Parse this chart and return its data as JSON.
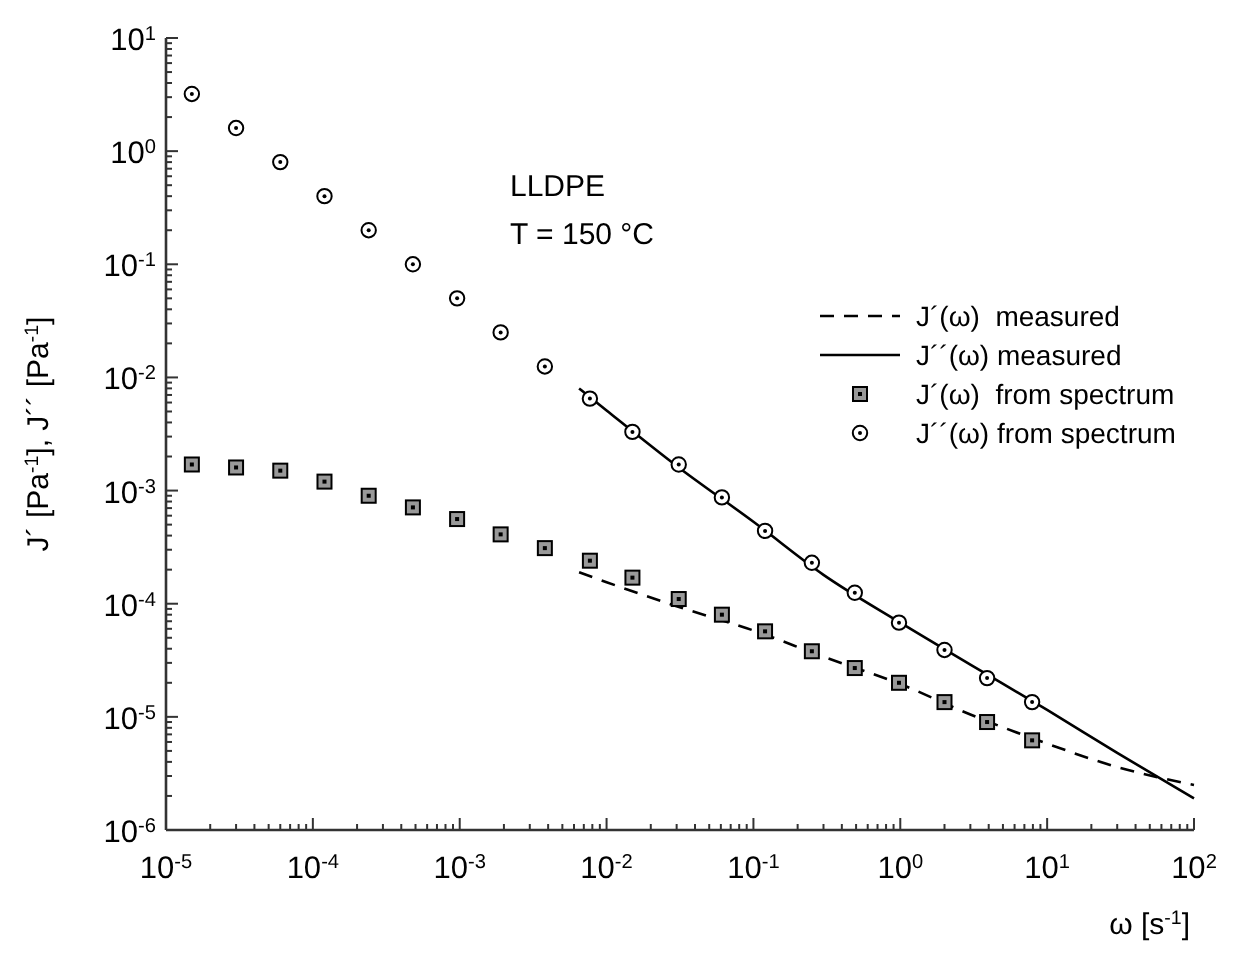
{
  "chart_data": {
    "type": "scatter",
    "xlabel": "ω [s$^{-1}$]",
    "ylabel": "J´ [Pa$^{-1}$], J´´ [Pa$^{-1}$]",
    "annotations": [
      "LLDPE",
      "T = 150 °C"
    ],
    "log": "xy",
    "legend": "top right",
    "grid": false,
    "xlim": [
      1e-05,
      100
    ],
    "ylim": [
      1e-06,
      10
    ],
    "xticks": [
      {
        "value": 1e-05,
        "label": "10$^{-5}$"
      },
      {
        "value": 0.0001,
        "label": "10$^{-4}$"
      },
      {
        "value": 0.001,
        "label": "10$^{-3}$"
      },
      {
        "value": 0.01,
        "label": "10$^{-2}$"
      },
      {
        "value": 0.1,
        "label": "10$^{-1}$"
      },
      {
        "value": 1,
        "label": "10$^{0}$"
      },
      {
        "value": 10,
        "label": "10$^{1}$"
      },
      {
        "value": 100,
        "label": "10$^{2}$"
      }
    ],
    "yticks": [
      {
        "value": 1e-06,
        "label": "10$^{-6}$"
      },
      {
        "value": 1e-05,
        "label": "10$^{-5}$"
      },
      {
        "value": 0.0001,
        "label": "10$^{-4}$"
      },
      {
        "value": 0.001,
        "label": "10$^{-3}$"
      },
      {
        "value": 0.01,
        "label": "10$^{-2}$"
      },
      {
        "value": 0.1,
        "label": "10$^{-1}$"
      },
      {
        "value": 1,
        "label": "10$^{0}$"
      },
      {
        "value": 10,
        "label": "10$^{1}$"
      }
    ],
    "series": [
      {
        "name": "J´(ω)  measured",
        "type": "line",
        "line_style": "dashed",
        "marker": "none",
        "color": "#000000",
        "x": [
          0.0065,
          0.01,
          0.03,
          0.1,
          0.3,
          1,
          3,
          10,
          30,
          100
        ],
        "values": [
          0.00019,
          0.000155,
          9.5e-05,
          5.8e-05,
          3.4e-05,
          1.95e-05,
          1.05e-05,
          5.8e-06,
          3.6e-06,
          2.5e-06
        ]
      },
      {
        "name": "J´´(ω) measured",
        "type": "line",
        "line_style": "solid",
        "marker": "none",
        "color": "#000000",
        "x": [
          0.0065,
          0.01,
          0.03,
          0.1,
          0.3,
          1,
          3,
          10,
          30,
          100
        ],
        "values": [
          0.008,
          0.0051,
          0.00165,
          0.00053,
          0.00018,
          6.8e-05,
          2.9e-05,
          1.15e-05,
          4.8e-06,
          1.9e-06
        ]
      },
      {
        "name": "J´(ω)  from spectrum",
        "marker": "square",
        "color": "#999999",
        "x": [
          1.5e-05,
          3e-05,
          6e-05,
          0.00012,
          0.00024,
          0.00048,
          0.00096,
          0.0019,
          0.0038,
          0.0077,
          0.015,
          0.031,
          0.061,
          0.12,
          0.25,
          0.49,
          0.98,
          2,
          3.9,
          7.9
        ],
        "values": [
          0.0017,
          0.0016,
          0.0015,
          0.0012,
          0.0009,
          0.00071,
          0.00056,
          0.00041,
          0.00031,
          0.00024,
          0.00017,
          0.00011,
          8e-05,
          5.7e-05,
          3.8e-05,
          2.7e-05,
          2e-05,
          1.35e-05,
          9e-06,
          6.2e-06
        ]
      },
      {
        "name": "J´´(ω) from spectrum",
        "marker": "circle",
        "color": "#000000",
        "x": [
          1.5e-05,
          3e-05,
          6e-05,
          0.00012,
          0.00024,
          0.00048,
          0.00096,
          0.0019,
          0.0038,
          0.0077,
          0.015,
          0.031,
          0.061,
          0.12,
          0.25,
          0.49,
          0.98,
          2,
          3.9,
          7.9
        ],
        "values": [
          3.2,
          1.6,
          0.8,
          0.4,
          0.2,
          0.1,
          0.05,
          0.025,
          0.0125,
          0.0065,
          0.0033,
          0.0017,
          0.00087,
          0.00044,
          0.00023,
          0.000125,
          6.8e-05,
          3.9e-05,
          2.2e-05,
          1.35e-05
        ]
      }
    ]
  }
}
